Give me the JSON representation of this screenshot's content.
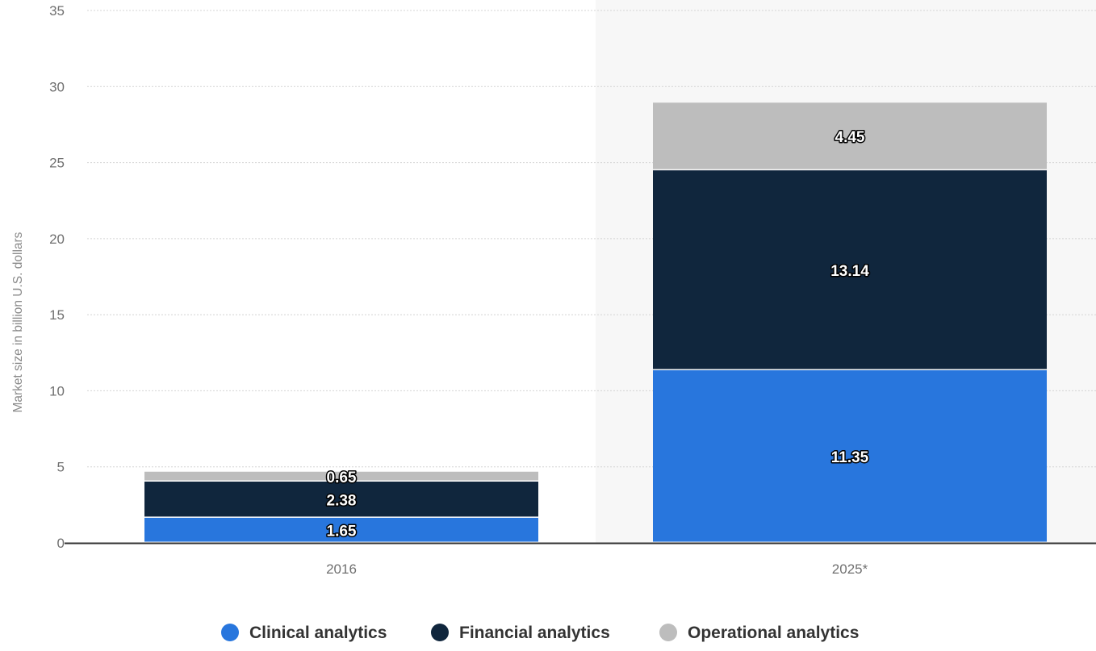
{
  "chart_data": {
    "type": "bar",
    "stacked": true,
    "categories": [
      "2016",
      "2025*"
    ],
    "series": [
      {
        "name": "Clinical analytics",
        "color": "#2876dd",
        "values": [
          1.65,
          11.35
        ]
      },
      {
        "name": "Financial analytics",
        "color": "#10263d",
        "values": [
          2.38,
          13.14
        ]
      },
      {
        "name": "Operational analytics",
        "color": "#bdbdbd",
        "values": [
          0.65,
          4.45
        ]
      }
    ],
    "data_labels": [
      [
        "1.65",
        "11.35"
      ],
      [
        "2.38",
        "13.14"
      ],
      [
        "0.65",
        "4.45"
      ]
    ],
    "title": "",
    "xlabel": "",
    "ylabel": "Market size in billion U.S. dollars",
    "ylim": [
      0,
      35
    ],
    "yticks": [
      0,
      5,
      10,
      15,
      20,
      25,
      30,
      35
    ],
    "ytick_labels": [
      "0",
      "5",
      "10",
      "15",
      "20",
      "25",
      "30",
      "35"
    ],
    "grid": true,
    "legend_position": "bottom-center",
    "highlight_category": "2025*",
    "colors": {
      "grid": "#d4d4d4",
      "axis": "#333333",
      "forecast_band": "#f7f7f7"
    }
  }
}
